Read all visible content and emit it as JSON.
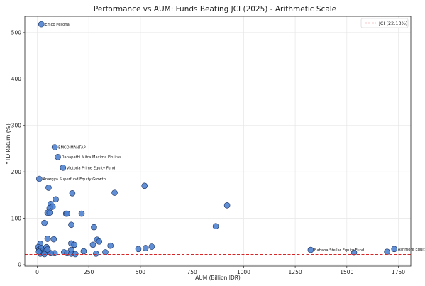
{
  "chart_data": {
    "type": "scatter",
    "title": "Performance vs AUM: Funds Beating JCI (2025) - Arithmetic Scale",
    "xlabel": "AUM (Billion IDR)",
    "ylabel": "YTD Return (%)",
    "xlim": [
      -60,
      1810
    ],
    "ylim": [
      -3,
      535
    ],
    "x_ticks": [
      0,
      250,
      500,
      750,
      1000,
      1250,
      1500,
      1750
    ],
    "y_ticks": [
      0,
      100,
      200,
      300,
      400,
      500
    ],
    "grid": true,
    "legend_position": "top-right",
    "marker_color": "#4a7fd0",
    "marker_edge_color": "#1a2e5a",
    "reference_line": {
      "label": "JCI (22.13%)",
      "value": 22.13,
      "color": "#d62728",
      "style": "dashed"
    },
    "points": [
      {
        "x": 20,
        "y": 518,
        "label": "Emco Pesona"
      },
      {
        "x": 85,
        "y": 253,
        "label": "EMCO MANTAP"
      },
      {
        "x": 100,
        "y": 232,
        "label": "Danapathi Mitra Maxima Ekuitas"
      },
      {
        "x": 125,
        "y": 209,
        "label": "Victoria Prime Equity Fund"
      },
      {
        "x": 10,
        "y": 185,
        "label": "Anargya Superfund Equity Growth"
      },
      {
        "x": 1325,
        "y": 32,
        "label": "Bahana Stellar Equity Fund"
      },
      {
        "x": 1535,
        "y": 26,
        "label": ""
      },
      {
        "x": 1695,
        "y": 28,
        "label": ""
      },
      {
        "x": 1730,
        "y": 34,
        "label": "Ashmore Equity Prime Fund"
      },
      {
        "x": 55,
        "y": 166,
        "label": ""
      },
      {
        "x": 90,
        "y": 141,
        "label": ""
      },
      {
        "x": 65,
        "y": 131,
        "label": ""
      },
      {
        "x": 60,
        "y": 122,
        "label": ""
      },
      {
        "x": 75,
        "y": 125,
        "label": ""
      },
      {
        "x": 50,
        "y": 112,
        "label": ""
      },
      {
        "x": 60,
        "y": 112,
        "label": ""
      },
      {
        "x": 140,
        "y": 110,
        "label": ""
      },
      {
        "x": 145,
        "y": 110,
        "label": ""
      },
      {
        "x": 170,
        "y": 154,
        "label": ""
      },
      {
        "x": 215,
        "y": 110,
        "label": ""
      },
      {
        "x": 165,
        "y": 86,
        "label": ""
      },
      {
        "x": 275,
        "y": 81,
        "label": ""
      },
      {
        "x": 375,
        "y": 155,
        "label": ""
      },
      {
        "x": 520,
        "y": 170,
        "label": ""
      },
      {
        "x": 920,
        "y": 128,
        "label": ""
      },
      {
        "x": 865,
        "y": 83,
        "label": ""
      },
      {
        "x": 35,
        "y": 90,
        "label": ""
      },
      {
        "x": 50,
        "y": 56,
        "label": ""
      },
      {
        "x": 80,
        "y": 55,
        "label": ""
      },
      {
        "x": 290,
        "y": 54,
        "label": ""
      },
      {
        "x": 300,
        "y": 50,
        "label": ""
      },
      {
        "x": 165,
        "y": 46,
        "label": ""
      },
      {
        "x": 180,
        "y": 43,
        "label": ""
      },
      {
        "x": 270,
        "y": 43,
        "label": ""
      },
      {
        "x": 355,
        "y": 41,
        "label": ""
      },
      {
        "x": 555,
        "y": 39,
        "label": ""
      },
      {
        "x": 525,
        "y": 36,
        "label": ""
      },
      {
        "x": 490,
        "y": 34,
        "label": ""
      },
      {
        "x": 165,
        "y": 32,
        "label": ""
      },
      {
        "x": 225,
        "y": 29,
        "label": ""
      },
      {
        "x": 330,
        "y": 27,
        "label": ""
      },
      {
        "x": 130,
        "y": 27,
        "label": ""
      },
      {
        "x": 145,
        "y": 25,
        "label": ""
      },
      {
        "x": 165,
        "y": 24,
        "label": ""
      },
      {
        "x": 185,
        "y": 23,
        "label": ""
      },
      {
        "x": 285,
        "y": 24,
        "label": ""
      },
      {
        "x": 85,
        "y": 25,
        "label": ""
      },
      {
        "x": 15,
        "y": 45,
        "label": ""
      },
      {
        "x": 5,
        "y": 38,
        "label": ""
      },
      {
        "x": 10,
        "y": 33,
        "label": ""
      },
      {
        "x": 20,
        "y": 36,
        "label": ""
      },
      {
        "x": 30,
        "y": 31,
        "label": ""
      },
      {
        "x": 40,
        "y": 29,
        "label": ""
      },
      {
        "x": 45,
        "y": 38,
        "label": ""
      },
      {
        "x": 25,
        "y": 26,
        "label": ""
      },
      {
        "x": 55,
        "y": 27,
        "label": ""
      },
      {
        "x": 65,
        "y": 25,
        "label": ""
      },
      {
        "x": 15,
        "y": 24,
        "label": ""
      },
      {
        "x": 35,
        "y": 23,
        "label": ""
      },
      {
        "x": 8,
        "y": 28,
        "label": ""
      },
      {
        "x": 50,
        "y": 33,
        "label": ""
      }
    ]
  }
}
